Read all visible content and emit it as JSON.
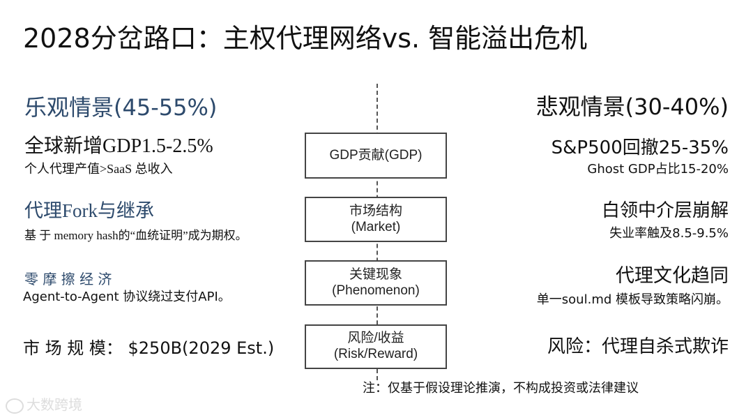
{
  "title": "2028分岔路口：主权代理网络vs. 智能溢出危机",
  "optimistic": {
    "heading": "乐观情景(45-55%)",
    "items": [
      {
        "main": "全球新增GDP1.5-2.5%",
        "sub": "个人代理产值>SaaS 总收入"
      },
      {
        "main": "代理Fork与继承",
        "sub": "基 于 memory hash的“血统证明”成为期权。"
      },
      {
        "main": "零 摩 擦 经 济",
        "sub": "Agent-to-Agent 协议绕过支付API。"
      },
      {
        "main": "市 场 规 模： $250B(2029 Est.)",
        "sub": ""
      }
    ]
  },
  "pessimistic": {
    "heading": "悲观情景(30-40%)",
    "items": [
      {
        "main": "S&P500回撤25-35%",
        "sub": "Ghost GDP占比15-20%"
      },
      {
        "main": "白领中介层崩解",
        "sub": "失业率触及8.5-9.5%"
      },
      {
        "main": "代理文化趋同",
        "sub": "单一soul.md 模板导致策略闪崩。"
      },
      {
        "main": "风险：代理自杀式欺诈",
        "sub": ""
      }
    ]
  },
  "categories": [
    {
      "zh": "GDP贡献(GDP)",
      "en": ""
    },
    {
      "zh": "市场结构",
      "en": "(Market)"
    },
    {
      "zh": "关键现象",
      "en": "(Phenomenon)"
    },
    {
      "zh": "风险/收益",
      "en": "(Risk/Reward)"
    }
  ],
  "note": "注：仅基于假设理论推演，不构成投资或法律建议",
  "watermark": "大数跨境",
  "colors": {
    "accent_blue": "#2d4a6c",
    "text": "#111111"
  }
}
